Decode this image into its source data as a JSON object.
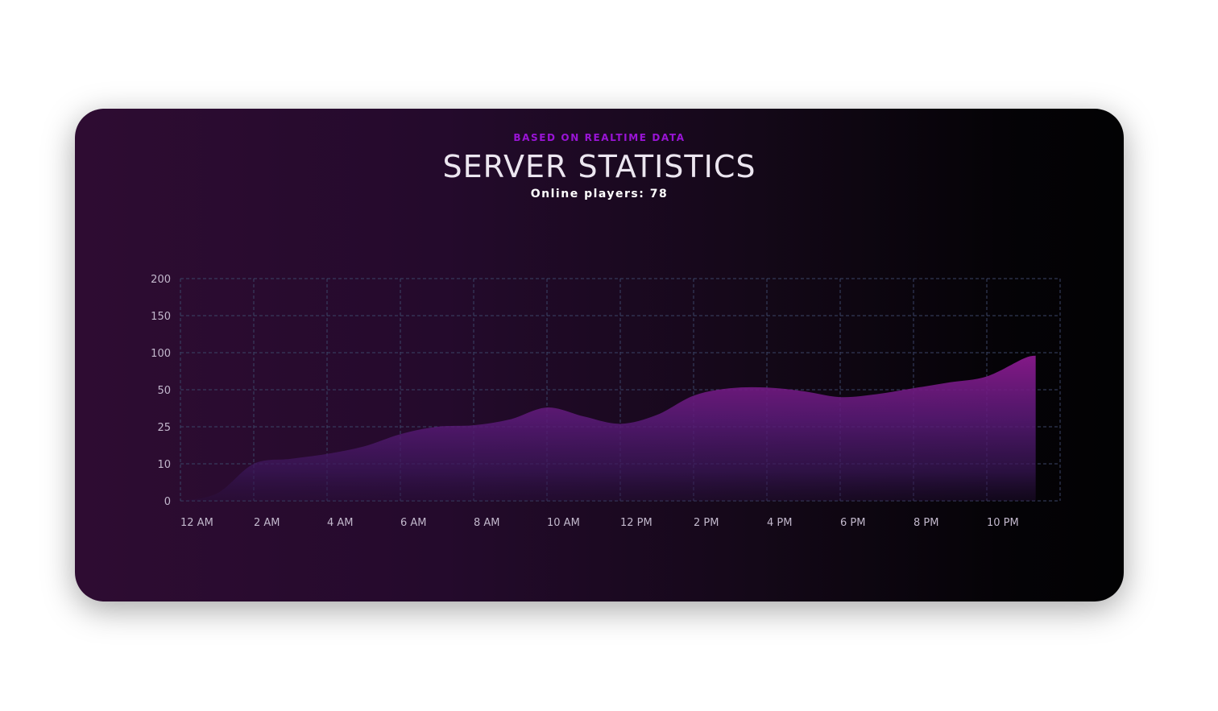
{
  "header": {
    "kicker": "BASED ON REALTIME DATA",
    "title": "SERVER STATISTICS",
    "online_label": "Online players:",
    "online_count": "78"
  },
  "colors": {
    "accent": "#9a14d6",
    "area_top": "#8a1a8e",
    "area_mid": "#4c1a6a",
    "grid": "#3a4466"
  },
  "chart_data": {
    "type": "area",
    "title": "",
    "xlabel": "",
    "ylabel": "",
    "x_ticks": [
      "12 AM",
      "2 AM",
      "4 AM",
      "6 AM",
      "8 AM",
      "10 AM",
      "12 PM",
      "2 PM",
      "4 PM",
      "6 PM",
      "8 PM",
      "10 PM"
    ],
    "y_ticks": [
      0,
      10,
      25,
      50,
      100,
      150,
      200
    ],
    "y_scale": "category-spaced",
    "grid": true,
    "legend": "none",
    "series": [
      {
        "points": [
          {
            "x": "12 AM",
            "y": 0
          },
          {
            "x": "1 AM",
            "y": 2
          },
          {
            "x": "2 AM",
            "y": 10
          },
          {
            "x": "3 AM",
            "y": 12
          },
          {
            "x": "4 AM",
            "y": 14
          },
          {
            "x": "5 AM",
            "y": 17
          },
          {
            "x": "6 AM",
            "y": 22
          },
          {
            "x": "7 AM",
            "y": 25
          },
          {
            "x": "8 AM",
            "y": 26
          },
          {
            "x": "9 AM",
            "y": 30
          },
          {
            "x": "10 AM",
            "y": 38
          },
          {
            "x": "11 AM",
            "y": 32
          },
          {
            "x": "12 PM",
            "y": 27
          },
          {
            "x": "1 PM",
            "y": 33
          },
          {
            "x": "2 PM",
            "y": 46
          },
          {
            "x": "3 PM",
            "y": 52
          },
          {
            "x": "4 PM",
            "y": 53
          },
          {
            "x": "5 PM",
            "y": 49
          },
          {
            "x": "6 PM",
            "y": 45
          },
          {
            "x": "7 PM",
            "y": 47
          },
          {
            "x": "8 PM",
            "y": 52
          },
          {
            "x": "9 PM",
            "y": 60
          },
          {
            "x": "10 PM",
            "y": 68
          },
          {
            "x": "11 PM",
            "y": 92
          },
          {
            "x": "11:20 PM",
            "y": 96
          }
        ]
      }
    ]
  }
}
